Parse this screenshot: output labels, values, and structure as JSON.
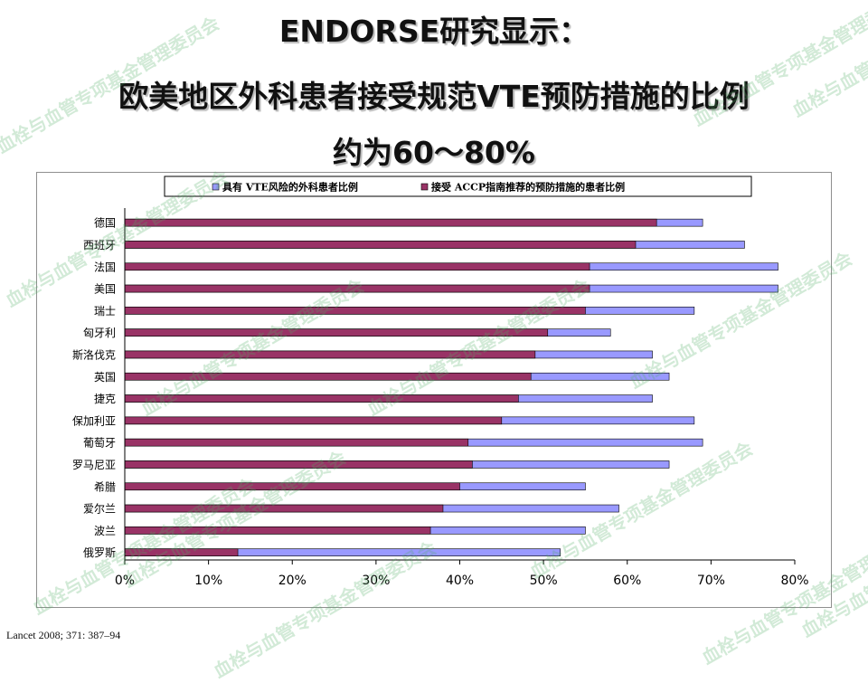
{
  "slide": {
    "title_line1": "ENDORSE研究显示：",
    "title_line2": "欧美地区外科患者接受规范VTE预防措施的比例",
    "title_line3": "约为60～80%",
    "source": "Lancet 2008; 371: 387–94",
    "watermark": "血栓与血管专项基金管理委员会"
  },
  "chart_data": {
    "type": "bar",
    "orientation": "horizontal",
    "categories": [
      "德国",
      "西班牙",
      "法国",
      "美国",
      "瑞士",
      "匈牙利",
      "斯洛伐克",
      "英国",
      "捷克",
      "保加利亚",
      "葡萄牙",
      "罗马尼亚",
      "希腊",
      "爱尔兰",
      "波兰",
      "俄罗斯"
    ],
    "series": [
      {
        "name": "具有 VTE风险的外科患者比例",
        "color": "#9999ff",
        "values": [
          69,
          74,
          78,
          78,
          68,
          58,
          63,
          65,
          63,
          68,
          69,
          65,
          55,
          59,
          55,
          52
        ]
      },
      {
        "name": "接受 ACCP指南推荐的预防措施的患者比例",
        "color": "#993366",
        "values": [
          63.5,
          61,
          55.5,
          55.5,
          55,
          50.5,
          49,
          48.5,
          47,
          45,
          41,
          41.5,
          40,
          38,
          36.5,
          13.5
        ]
      }
    ],
    "xlim": [
      0,
      80
    ],
    "xticks": [
      "0%",
      "10%",
      "20%",
      "30%",
      "40%",
      "50%",
      "60%",
      "70%",
      "80%"
    ],
    "legend_position": "top",
    "grid": false,
    "overlap": true
  }
}
